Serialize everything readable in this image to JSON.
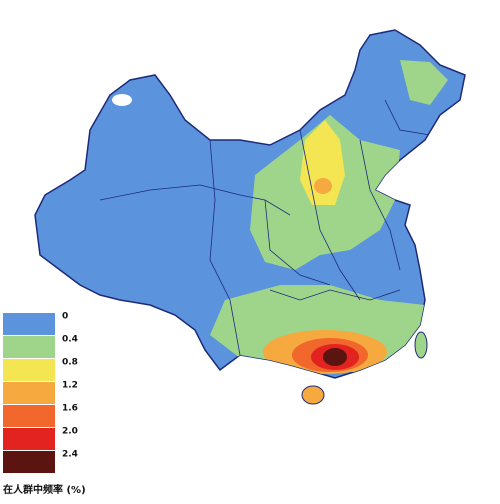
{
  "legend": {
    "title": "在人群中频率 (%)",
    "items": [
      {
        "label": "0",
        "color": "#5b93dc"
      },
      {
        "label": "0.4",
        "color": "#9fd58a"
      },
      {
        "label": "0.8",
        "color": "#f4e553"
      },
      {
        "label": "1.2",
        "color": "#f6a93f"
      },
      {
        "label": "1.6",
        "color": "#f1672c"
      },
      {
        "label": "2.0",
        "color": "#e3231f"
      },
      {
        "label": "2.4",
        "color": "#5c1410"
      }
    ]
  }
}
